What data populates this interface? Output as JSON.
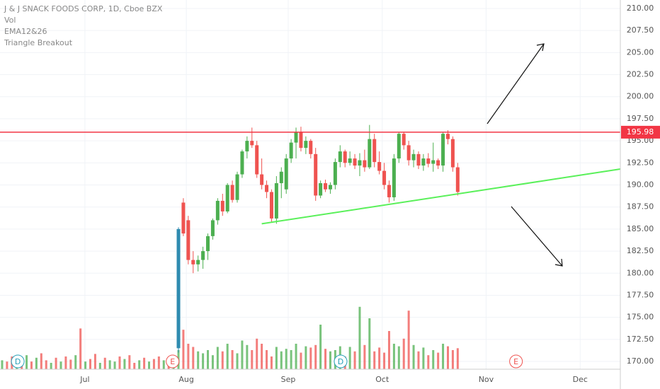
{
  "chart_data": {
    "type": "candlestick",
    "legend": [
      "J & J SNACK FOODS CORP, 1D, Cboe BZX",
      "Vol",
      "EMA12&26",
      "Triangle Breakout"
    ],
    "up_color": "#4caf50",
    "down_color": "#ef5350",
    "gap_color": "#2e8bb0",
    "xlim": [
      -0.43,
      126.2
    ],
    "xticks": [
      {
        "value": 16.9,
        "label": "Jul"
      },
      {
        "value": 37.6,
        "label": "Aug"
      },
      {
        "value": 58.4,
        "label": "Sep"
      },
      {
        "value": 77.6,
        "label": "Oct"
      },
      {
        "value": 98.8,
        "label": "Nov"
      },
      {
        "value": 118,
        "label": "Dec"
      }
    ],
    "ylim": [
      169.12,
      210.96
    ],
    "yticks": [
      {
        "value": 170,
        "label": "170.00"
      },
      {
        "value": 172.5,
        "label": "172.50"
      },
      {
        "value": 175,
        "label": "175.00"
      },
      {
        "value": 177.5,
        "label": "177.50"
      },
      {
        "value": 180,
        "label": "180.00"
      },
      {
        "value": 182.5,
        "label": "182.50"
      },
      {
        "value": 185,
        "label": "185.00"
      },
      {
        "value": 187.5,
        "label": "187.50"
      },
      {
        "value": 190,
        "label": "190.00"
      },
      {
        "value": 192.5,
        "label": "192.50"
      },
      {
        "value": 195,
        "label": "195.00"
      },
      {
        "value": 197.5,
        "label": "197.50"
      },
      {
        "value": 200,
        "label": "200.00"
      },
      {
        "value": 202.5,
        "label": "202.50"
      },
      {
        "value": 205,
        "label": "205.00"
      },
      {
        "value": 207.5,
        "label": "207.50"
      },
      {
        "value": 210,
        "label": "210.00"
      }
    ],
    "grid": true,
    "ohlc": [
      null,
      null,
      null,
      null,
      null,
      null,
      null,
      null,
      null,
      null,
      null,
      null,
      null,
      null,
      null,
      null,
      null,
      null,
      null,
      null,
      null,
      null,
      null,
      null,
      null,
      null,
      null,
      null,
      null,
      null,
      null,
      null,
      null,
      null,
      null,
      null,
      [
        171.5,
        185.2,
        171,
        185
      ],
      [
        188,
        188.5,
        184.2,
        184.5
      ],
      [
        186,
        186.5,
        181,
        181.5
      ],
      [
        181.5,
        182.5,
        180,
        181
      ],
      [
        181,
        182,
        180.2,
        181.5
      ],
      [
        181.5,
        183,
        180.5,
        182.5
      ],
      [
        182.5,
        184.5,
        181.5,
        184.2
      ],
      [
        184.2,
        186.2,
        183.8,
        186
      ],
      [
        186,
        188.5,
        185.5,
        188.2
      ],
      [
        188.2,
        189,
        186.5,
        187
      ],
      [
        187,
        190.2,
        186.8,
        190
      ],
      [
        190,
        190.5,
        188,
        188.3
      ],
      [
        188.3,
        191.5,
        188,
        191.2
      ],
      [
        191.2,
        194,
        190.8,
        193.8
      ],
      [
        193.8,
        195.5,
        193,
        195
      ],
      [
        195,
        196.5,
        194.2,
        194.5
      ],
      [
        194.5,
        195,
        190.8,
        191.2
      ],
      [
        191.2,
        193,
        189.5,
        190
      ],
      [
        190,
        190.5,
        188.5,
        189.2
      ],
      [
        189.2,
        189.5,
        185.8,
        186.2
      ],
      [
        186.2,
        191,
        185.6,
        190.2
      ],
      [
        190.2,
        192,
        188.5,
        191.5
      ],
      [
        189.5,
        193.5,
        189,
        193
      ],
      [
        193,
        195.2,
        192.5,
        194.8
      ],
      [
        194.8,
        196.5,
        193,
        196
      ],
      [
        196,
        196.6,
        193.8,
        194.2
      ],
      [
        194.2,
        195.5,
        193.5,
        195
      ],
      [
        195,
        195.2,
        193,
        193.5
      ],
      [
        193.5,
        194.2,
        188.2,
        188.8
      ],
      [
        188.8,
        190.5,
        188.5,
        190.2
      ],
      [
        190.2,
        190.6,
        189.2,
        189.5
      ],
      [
        189.5,
        190.3,
        189,
        190
      ],
      [
        190,
        193,
        189.5,
        192.6
      ],
      [
        192.6,
        194.5,
        192,
        193.8
      ],
      [
        193.8,
        194,
        192,
        192.5
      ],
      [
        192.5,
        193.8,
        192.2,
        193
      ],
      [
        193,
        193.5,
        191.8,
        192.2
      ],
      [
        192.2,
        193.6,
        191,
        192.8
      ],
      [
        192.8,
        194,
        191.5,
        192
      ],
      [
        192,
        196.8,
        191.8,
        195.2
      ],
      [
        195.2,
        195.8,
        192,
        192.6
      ],
      [
        192.6,
        193.8,
        191.2,
        191.6
      ],
      [
        191.6,
        192.5,
        189.5,
        190
      ],
      [
        190,
        190.5,
        188,
        188.6
      ],
      [
        188.6,
        193.5,
        188.2,
        193
      ],
      [
        193,
        196,
        192.5,
        195.8
      ],
      [
        195.8,
        196,
        194,
        194.5
      ],
      [
        194.5,
        195,
        192.2,
        192.8
      ],
      [
        192.8,
        194,
        192,
        193.5
      ],
      [
        193.5,
        193.8,
        191.8,
        192.2
      ],
      [
        192.2,
        193.5,
        191.6,
        193
      ],
      [
        193,
        193.6,
        192,
        192.4
      ],
      [
        192.4,
        194.8,
        191.5,
        192.8
      ],
      [
        192.8,
        193,
        191.8,
        192.2
      ],
      [
        192.2,
        196,
        191.5,
        195.8
      ],
      [
        195.8,
        196.2,
        194.6,
        195.2
      ],
      [
        195.2,
        195.5,
        191.5,
        192
      ],
      [
        192,
        192.5,
        188.8,
        189.2
      ]
    ],
    "volume": [
      14,
      12,
      20,
      10,
      16,
      22,
      12,
      18,
      25,
      14,
      10,
      18,
      12,
      20,
      15,
      22,
      64,
      12,
      16,
      24,
      10,
      18,
      14,
      12,
      20,
      16,
      22,
      10,
      14,
      18,
      12,
      16,
      20,
      14,
      10,
      18,
      30,
      62,
      40,
      35,
      28,
      25,
      30,
      22,
      35,
      28,
      40,
      30,
      25,
      45,
      38,
      30,
      48,
      40,
      30,
      20,
      35,
      28,
      32,
      30,
      40,
      26,
      36,
      34,
      38,
      70,
      32,
      28,
      30,
      36,
      20,
      35,
      28,
      98,
      38,
      80,
      28,
      34,
      26,
      60,
      40,
      36,
      48,
      92,
      38,
      28,
      34,
      22,
      30,
      26,
      40,
      36,
      30,
      33
    ],
    "volume_up": [
      true,
      false,
      false,
      true,
      false,
      true,
      false,
      true,
      false,
      false,
      true,
      false,
      true,
      false,
      false,
      true,
      false,
      true,
      false,
      false,
      true,
      false,
      true,
      true,
      false,
      true,
      false,
      false,
      true,
      false,
      true,
      false,
      false,
      true,
      false,
      true,
      null,
      null,
      null,
      null,
      null,
      null,
      null,
      null,
      null,
      null,
      null,
      null,
      null,
      null,
      null,
      null,
      null,
      null,
      null,
      null,
      null,
      null,
      null,
      null,
      null,
      null,
      null,
      null,
      null,
      null,
      null,
      null,
      null,
      null,
      null,
      null,
      null,
      null,
      null,
      null,
      null,
      null,
      null,
      null,
      null,
      null,
      null,
      null,
      null,
      null,
      null,
      null,
      null,
      null,
      null,
      null,
      null,
      null
    ],
    "volume_ylim": [
      0,
      580
    ],
    "resistance": {
      "value": 195.98,
      "color": "#f23645"
    },
    "trendline": {
      "x": [
        53,
        126.2
      ],
      "y": [
        185.6,
        191.8
      ],
      "color": "#5af05a"
    },
    "events": [
      {
        "x": 3.2,
        "label": "D"
      },
      {
        "x": 34.8,
        "label": "E"
      },
      {
        "x": 69.1,
        "label": "D"
      },
      {
        "x": 104.9,
        "label": "E"
      }
    ]
  }
}
